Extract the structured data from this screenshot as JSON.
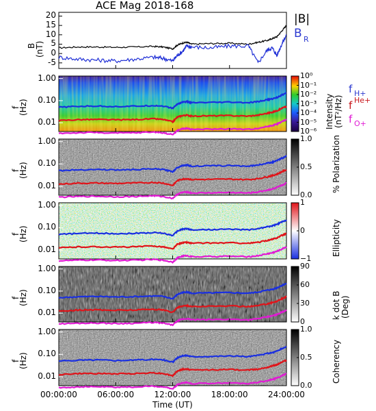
{
  "title": "ACE Mag 2018-168",
  "colors": {
    "bmag": "#000000",
    "br": "#1f2fd6",
    "fHplus": "#1a2fe0",
    "fHeplus": "#e0141a",
    "fOplus": "#e11bd4",
    "legend_bmag": "#000000",
    "legend_br": "#2d3ad0",
    "legend_fH": "#2d3ad0",
    "legend_fHe": "#c8141a",
    "legend_fO": "#e11bd4"
  },
  "legend": {
    "bmag": "|B|",
    "br": "B",
    "br_sub": "R",
    "fH": "f",
    "fH_sub": "H+",
    "fHe": "f",
    "fHe_sup": "He+",
    "fO": "f",
    "fO_sub": "O+"
  },
  "xaxis": {
    "label": "Time (UT)",
    "ticks": [
      "00:00:00",
      "06:00:00",
      "12:00:00",
      "18:00:00",
      "24:00:00"
    ]
  },
  "panels": [
    {
      "name": "b-field",
      "ylabel": "B",
      "yunit": "(nT)",
      "yticks": [
        "20",
        "15",
        "10",
        "5",
        "0",
        "-5"
      ]
    },
    {
      "name": "intensity",
      "ylabel": "f",
      "yunit": "(Hz)",
      "yticks": [
        "1.00",
        "0.10",
        "0.01"
      ],
      "cbar_label": "Intensity",
      "cbar_unit": "(nT²/Hz)",
      "cbar_ticks": [
        "10⁰",
        "10⁻¹",
        "10⁻²",
        "10⁻³",
        "10⁻⁴",
        "10⁻⁵",
        "10⁻⁶"
      ]
    },
    {
      "name": "polarization",
      "ylabel": "f",
      "yunit": "(Hz)",
      "yticks": [
        "1.00",
        "0.10",
        "0.01"
      ],
      "cbar_label": "% Polarization",
      "cbar_ticks": [
        "1.0",
        "0.5",
        "0.0"
      ]
    },
    {
      "name": "ellipticity",
      "ylabel": "f",
      "yunit": "(Hz)",
      "yticks": [
        "1.00",
        "0.10",
        "0.01"
      ],
      "cbar_label": "Ellipticity",
      "cbar_ticks": [
        "1",
        "0",
        "−1"
      ]
    },
    {
      "name": "k-dot-b",
      "ylabel": "f",
      "yunit": "(Hz)",
      "yticks": [
        "1.00",
        "0.10",
        "0.01"
      ],
      "cbar_label": "k dot B",
      "cbar_unit": "(Deg)",
      "cbar_ticks": [
        "90",
        "60",
        "30",
        "0"
      ]
    },
    {
      "name": "coherency",
      "ylabel": "f",
      "yunit": "(Hz)",
      "yticks": [
        "1.00",
        "0.10",
        "0.01"
      ],
      "cbar_label": "Coherency",
      "cbar_ticks": [
        "1.0",
        "0.5",
        "0.0"
      ]
    }
  ],
  "chart_data": {
    "type": "line",
    "title": "ACE Mag 2018-168",
    "xlabel": "Time (UT)",
    "xlim": [
      0,
      24
    ],
    "x_units": "hours UT",
    "b_field": {
      "ylabel": "B (nT)",
      "ylim": [
        -8,
        22
      ],
      "x": [
        0,
        2,
        4,
        6,
        8,
        10,
        11,
        12,
        12.5,
        13,
        13.5,
        14,
        16,
        18,
        20,
        21,
        22,
        22.5,
        23,
        23.5,
        24
      ],
      "series": [
        {
          "name": "|B|",
          "values": [
            3,
            3.5,
            3.5,
            3.3,
            3.5,
            3.8,
            3.5,
            2.5,
            4.5,
            5.5,
            6,
            5,
            5.3,
            5.5,
            5,
            6,
            7,
            8,
            9,
            12,
            15
          ]
        },
        {
          "name": "B_R",
          "values": [
            -2,
            -3,
            -3.5,
            -4,
            -3,
            -2,
            -2.5,
            -4,
            -1,
            1,
            4,
            3.5,
            3,
            4,
            4,
            -5,
            2,
            3,
            -1,
            5,
            10
          ]
        }
      ]
    },
    "gyrofrequency": {
      "ylabel": "f (Hz)",
      "ylim": [
        0.004,
        1.3
      ],
      "y_scale": "log",
      "x": [
        0,
        2,
        4,
        6,
        8,
        10,
        11,
        12,
        12.5,
        13,
        13.5,
        14,
        16,
        18,
        20,
        21,
        22,
        22.5,
        23,
        23.5,
        24
      ],
      "series": [
        {
          "name": "f H+",
          "values": [
            0.05,
            0.055,
            0.057,
            0.054,
            0.056,
            0.06,
            0.057,
            0.045,
            0.07,
            0.085,
            0.09,
            0.08,
            0.082,
            0.085,
            0.08,
            0.09,
            0.11,
            0.12,
            0.14,
            0.18,
            0.22
          ]
        },
        {
          "name": "f He+",
          "values": [
            0.0125,
            0.0138,
            0.014,
            0.0135,
            0.014,
            0.015,
            0.014,
            0.011,
            0.018,
            0.021,
            0.022,
            0.02,
            0.0205,
            0.021,
            0.02,
            0.022,
            0.027,
            0.03,
            0.035,
            0.045,
            0.055
          ]
        },
        {
          "name": "f O+",
          "values": [
            0.0033,
            0.0035,
            0.0036,
            0.0034,
            0.0035,
            0.0038,
            0.0035,
            0.0029,
            0.0044,
            0.0053,
            0.0056,
            0.005,
            0.0051,
            0.0053,
            0.005,
            0.0056,
            0.0068,
            0.0075,
            0.0088,
            0.011,
            0.014
          ]
        }
      ]
    },
    "spectrogram_ranges": {
      "intensity": [
        1e-06,
        1
      ],
      "polarization": [
        0,
        1
      ],
      "ellipticity": [
        -1,
        1
      ],
      "k_dot_b": [
        0,
        90
      ],
      "coherency": [
        0,
        1
      ]
    }
  }
}
